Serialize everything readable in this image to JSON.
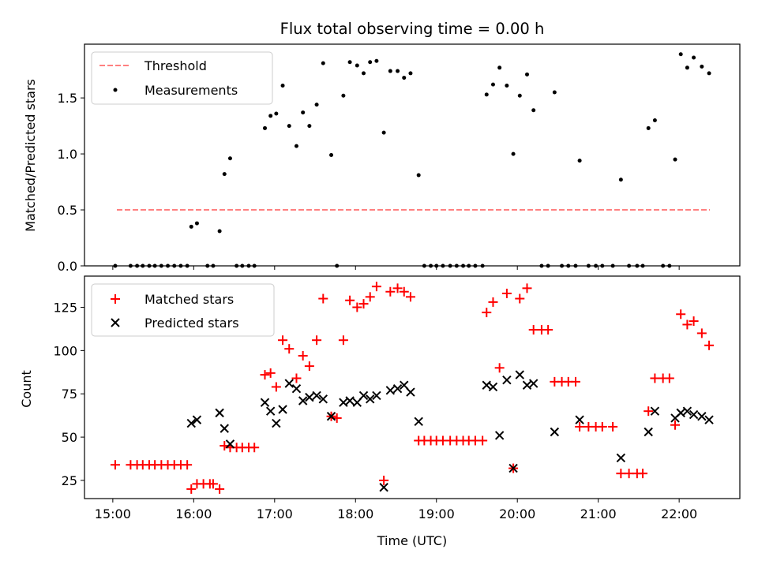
{
  "chart_data": [
    {
      "type": "scatter",
      "title": "Flux total observing time = 0.00 h",
      "xlabel": "",
      "ylabel": "Matched/Predicted stars",
      "xlim": [
        14.65,
        22.75
      ],
      "ylim": [
        0.0,
        1.98
      ],
      "yticks": [
        0.0,
        0.5,
        1.0,
        1.5
      ],
      "ytick_labels": [
        "0.0",
        "0.5",
        "1.0",
        "1.5"
      ],
      "legend": {
        "position": "top-left",
        "entries": [
          "Threshold",
          "Measurements"
        ]
      },
      "threshold": {
        "name": "Threshold",
        "value": 0.5,
        "x_range": [
          15.05,
          22.38
        ],
        "color": "#ff8080"
      },
      "series": [
        {
          "name": "Measurements",
          "marker": "dot",
          "color": "#000000",
          "x": [
            15.03,
            15.22,
            15.3,
            15.37,
            15.45,
            15.52,
            15.6,
            15.68,
            15.76,
            15.84,
            15.92,
            15.97,
            16.04,
            16.17,
            16.24,
            16.32,
            16.38,
            16.45,
            16.53,
            16.6,
            16.68,
            16.75,
            16.88,
            16.95,
            17.02,
            17.1,
            17.18,
            17.27,
            17.35,
            17.43,
            17.52,
            17.6,
            17.7,
            17.77,
            17.85,
            17.93,
            18.02,
            18.1,
            18.18,
            18.26,
            18.35,
            18.43,
            18.52,
            18.6,
            18.68,
            18.78,
            18.85,
            18.93,
            19.0,
            19.08,
            19.17,
            19.25,
            19.33,
            19.4,
            19.48,
            19.57,
            19.62,
            19.7,
            19.78,
            19.87,
            19.95,
            20.03,
            20.12,
            20.2,
            20.3,
            20.38,
            20.46,
            20.55,
            20.63,
            20.72,
            20.77,
            20.88,
            20.97,
            21.05,
            21.18,
            21.28,
            21.38,
            21.48,
            21.55,
            21.62,
            21.7,
            21.8,
            21.88,
            21.95,
            22.02,
            22.1,
            22.18,
            22.28,
            22.37
          ],
          "y": [
            0.0,
            0.0,
            0.0,
            0.0,
            0.0,
            0.0,
            0.0,
            0.0,
            0.0,
            0.0,
            0.0,
            0.35,
            0.38,
            0.0,
            0.0,
            0.31,
            0.82,
            0.96,
            0.0,
            0.0,
            0.0,
            0.0,
            1.23,
            1.34,
            1.36,
            1.61,
            1.25,
            1.07,
            1.37,
            1.25,
            1.44,
            1.81,
            0.99,
            0.0,
            1.52,
            1.82,
            1.79,
            1.72,
            1.82,
            1.83,
            1.19,
            1.74,
            1.74,
            1.68,
            1.72,
            0.81,
            0.0,
            0.0,
            0.0,
            0.0,
            0.0,
            0.0,
            0.0,
            0.0,
            0.0,
            0.0,
            1.53,
            1.62,
            1.77,
            1.61,
            1.0,
            1.52,
            1.71,
            1.39,
            0.0,
            0.0,
            1.55,
            0.0,
            0.0,
            0.0,
            0.94,
            0.0,
            0.0,
            0.0,
            0.0,
            0.77,
            0.0,
            0.0,
            0.0,
            1.23,
            1.3,
            0.0,
            0.0,
            0.95,
            1.89,
            1.77,
            1.86,
            1.78,
            1.72
          ]
        }
      ]
    },
    {
      "type": "scatter",
      "title": "",
      "xlabel": "Time (UTC)",
      "ylabel": "Count",
      "xlim": [
        14.65,
        22.75
      ],
      "ylim": [
        14.5,
        143
      ],
      "xticks": [
        15,
        16,
        17,
        18,
        19,
        20,
        21,
        22
      ],
      "xtick_labels": [
        "15:00",
        "16:00",
        "17:00",
        "18:00",
        "19:00",
        "20:00",
        "21:00",
        "22:00"
      ],
      "yticks": [
        25,
        50,
        75,
        100,
        125
      ],
      "ytick_labels": [
        "25",
        "50",
        "75",
        "100",
        "125"
      ],
      "legend": {
        "position": "top-left",
        "entries": [
          "Matched stars",
          "Predicted stars"
        ]
      },
      "series": [
        {
          "name": "Matched stars",
          "marker": "plus",
          "color": "#ff0000",
          "x": [
            15.03,
            15.22,
            15.3,
            15.37,
            15.45,
            15.52,
            15.6,
            15.68,
            15.76,
            15.84,
            15.92,
            15.97,
            16.04,
            16.12,
            16.2,
            16.24,
            16.32,
            16.38,
            16.45,
            16.53,
            16.6,
            16.68,
            16.75,
            16.88,
            16.95,
            17.02,
            17.1,
            17.18,
            17.27,
            17.35,
            17.43,
            17.52,
            17.6,
            17.7,
            17.77,
            17.85,
            17.93,
            18.02,
            18.1,
            18.18,
            18.26,
            18.35,
            18.43,
            18.52,
            18.6,
            18.68,
            18.78,
            18.85,
            18.93,
            19.0,
            19.08,
            19.17,
            19.25,
            19.33,
            19.4,
            19.48,
            19.57,
            19.62,
            19.7,
            19.78,
            19.87,
            19.95,
            20.03,
            20.12,
            20.2,
            20.3,
            20.38,
            20.46,
            20.55,
            20.63,
            20.72,
            20.77,
            20.88,
            20.97,
            21.05,
            21.18,
            21.28,
            21.38,
            21.48,
            21.55,
            21.62,
            21.7,
            21.8,
            21.88,
            21.95,
            22.02,
            22.1,
            22.18,
            22.28,
            22.37
          ],
          "y": [
            34,
            34,
            34,
            34,
            34,
            34,
            34,
            34,
            34,
            34,
            34,
            20,
            23,
            23,
            23,
            23,
            20,
            45,
            44,
            44,
            44,
            44,
            44,
            86,
            87,
            79,
            106,
            101,
            84,
            97,
            91,
            106,
            130,
            62,
            61,
            106,
            129,
            125,
            127,
            131,
            137,
            25,
            134,
            136,
            134,
            131,
            48,
            48,
            48,
            48,
            48,
            48,
            48,
            48,
            48,
            48,
            48,
            122,
            128,
            90,
            133,
            32,
            130,
            136,
            112,
            112,
            112,
            82,
            82,
            82,
            82,
            56,
            56,
            56,
            56,
            56,
            29,
            29,
            29,
            29,
            65,
            84,
            84,
            84,
            57,
            121,
            115,
            117,
            110,
            103
          ]
        },
        {
          "name": "Predicted stars",
          "marker": "x",
          "color": "#000000",
          "x": [
            15.97,
            16.04,
            16.32,
            16.38,
            16.45,
            16.88,
            16.95,
            17.02,
            17.1,
            17.18,
            17.27,
            17.35,
            17.43,
            17.52,
            17.6,
            17.7,
            17.85,
            17.93,
            18.02,
            18.1,
            18.18,
            18.26,
            18.35,
            18.43,
            18.52,
            18.6,
            18.68,
            18.78,
            19.62,
            19.7,
            19.78,
            19.87,
            19.95,
            20.03,
            20.12,
            20.2,
            20.46,
            20.77,
            21.28,
            21.62,
            21.7,
            21.95,
            22.02,
            22.1,
            22.18,
            22.28,
            22.37
          ],
          "y": [
            58,
            60,
            64,
            55,
            46,
            70,
            65,
            58,
            66,
            81,
            78,
            71,
            73,
            74,
            72,
            62,
            70,
            71,
            70,
            74,
            72,
            74,
            21,
            77,
            78,
            80,
            76,
            59,
            80,
            79,
            51,
            83,
            32,
            86,
            80,
            81,
            53,
            60,
            38,
            53,
            65,
            61,
            64,
            65,
            63,
            62,
            60
          ]
        }
      ]
    }
  ]
}
